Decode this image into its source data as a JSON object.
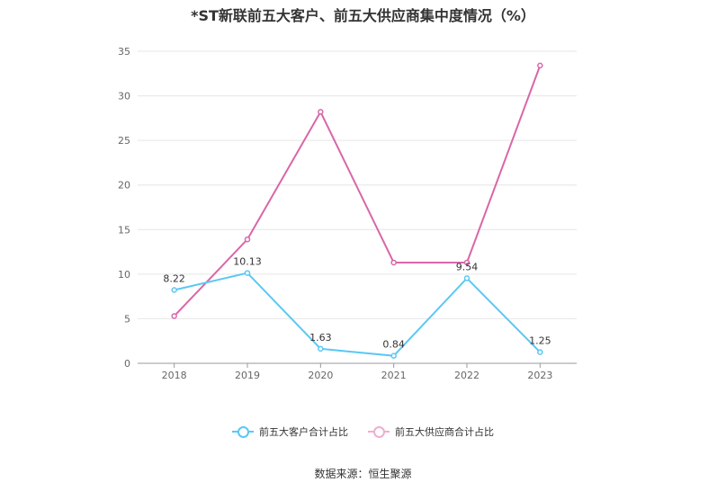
{
  "chart_data": {
    "type": "line",
    "title": "*ST新联前五大客户、前五大供应商集中度情况（%）",
    "categories": [
      "2018",
      "2019",
      "2020",
      "2021",
      "2022",
      "2023"
    ],
    "ylim": [
      0,
      35
    ],
    "yticks": [
      0,
      5,
      10,
      15,
      20,
      25,
      30,
      35
    ],
    "grid": true,
    "legend_position": "bottom",
    "series": [
      {
        "name": "前五大客户合计占比",
        "color": "#5ac8f5",
        "values": [
          8.22,
          10.13,
          1.63,
          0.84,
          9.54,
          1.25
        ],
        "labels": [
          "8.22",
          "10.13",
          "1.63",
          "0.84",
          "9.54",
          "1.25"
        ]
      },
      {
        "name": "前五大供应商合计占比",
        "color": "#d966a8",
        "values": [
          5.3,
          13.9,
          28.2,
          11.3,
          11.3,
          33.4
        ],
        "labels": []
      }
    ],
    "source": "数据来源：恒生聚源"
  }
}
